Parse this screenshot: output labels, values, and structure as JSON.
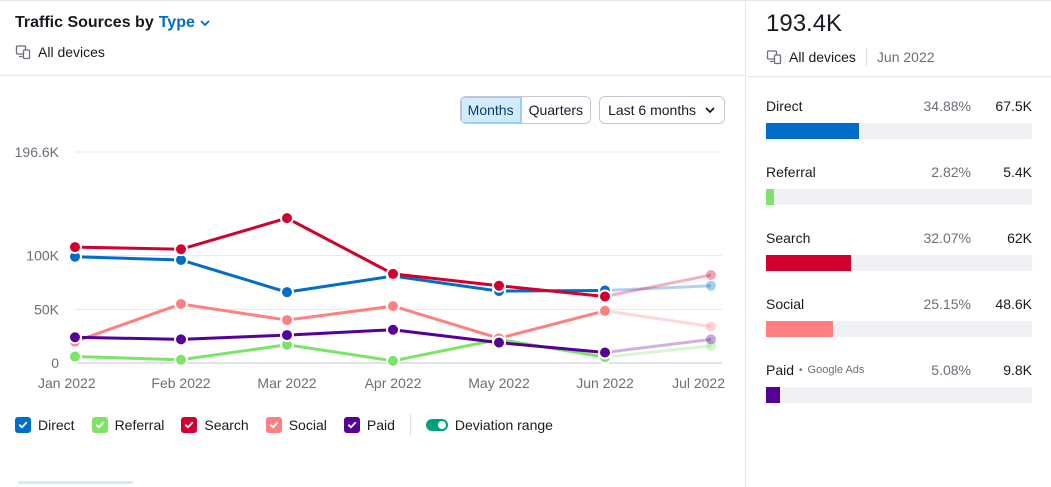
{
  "widget": {
    "title_prefix": "Traffic Sources by",
    "title_link": "Type",
    "devices_label": "All devices"
  },
  "controls": {
    "period_tabs": [
      "Months",
      "Quarters"
    ],
    "active_tab": "Months",
    "range_label": "Last 6 months"
  },
  "chart_data": {
    "type": "line",
    "categories": [
      "Jan 2022",
      "Feb 2022",
      "Mar 2022",
      "Apr 2022",
      "May 2022",
      "Jun 2022",
      "Jul 2022"
    ],
    "y_ticks": [
      {
        "value": 196600,
        "label": "196.6K"
      },
      {
        "value": 100000,
        "label": "100K"
      },
      {
        "value": 50000,
        "label": "50K"
      },
      {
        "value": 0,
        "label": "0"
      }
    ],
    "ylim": [
      0,
      196600
    ],
    "grid": true,
    "series": [
      {
        "name": "Direct",
        "color": "#006dca",
        "values": [
          99000,
          96000,
          66000,
          81000,
          67000,
          67500,
          72000
        ],
        "projected_from": 5
      },
      {
        "name": "Referral",
        "color": "#7ce569",
        "values": [
          6000,
          3000,
          17000,
          2000,
          22000,
          5400,
          16000
        ],
        "projected_from": 5
      },
      {
        "name": "Search",
        "color": "#d1002f",
        "values": [
          108000,
          106000,
          135000,
          83000,
          72000,
          62000,
          82000
        ],
        "projected_from": 5
      },
      {
        "name": "Social",
        "color": "#ff8080",
        "values": [
          20000,
          55000,
          40000,
          53000,
          23000,
          48600,
          34000
        ],
        "projected_from": 5
      },
      {
        "name": "Paid",
        "color": "#550096",
        "values": [
          24000,
          22000,
          26000,
          31000,
          19000,
          9800,
          22000
        ],
        "projected_from": 5
      }
    ]
  },
  "legend": {
    "items": [
      {
        "label": "Direct",
        "color": "#006dca"
      },
      {
        "label": "Referral",
        "color": "#7ce569"
      },
      {
        "label": "Search",
        "color": "#d1002f"
      },
      {
        "label": "Social",
        "color": "#ff8080"
      },
      {
        "label": "Paid",
        "color": "#550096"
      }
    ],
    "deviation_label": "Deviation range"
  },
  "summary": {
    "total": "193.4K",
    "devices_label": "All devices",
    "date": "Jun 2022",
    "rows": [
      {
        "label": "Direct",
        "sub": "",
        "percent": "34.88%",
        "fraction": 0.3488,
        "value": "67.5K",
        "color": "#006dca"
      },
      {
        "label": "Referral",
        "sub": "",
        "percent": "2.82%",
        "fraction": 0.0282,
        "value": "5.4K",
        "color": "#7ce569"
      },
      {
        "label": "Search",
        "sub": "",
        "percent": "32.07%",
        "fraction": 0.3207,
        "value": "62K",
        "color": "#d1002f"
      },
      {
        "label": "Social",
        "sub": "",
        "percent": "25.15%",
        "fraction": 0.2515,
        "value": "48.6K",
        "color": "#ff8080"
      },
      {
        "label": "Paid",
        "sub": "Google Ads",
        "percent": "5.08%",
        "fraction": 0.0508,
        "value": "9.8K",
        "color": "#550096"
      }
    ]
  }
}
